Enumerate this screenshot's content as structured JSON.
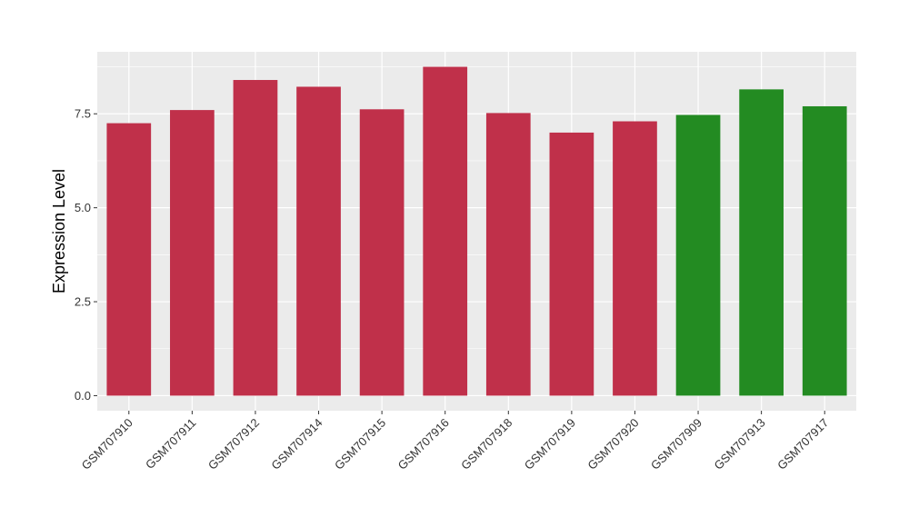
{
  "chart_data": {
    "type": "bar",
    "title": "",
    "xlabel": "",
    "ylabel": "Expression Level",
    "ylim": [
      -0.4,
      9.15
    ],
    "yticks": [
      0.0,
      2.5,
      5.0,
      7.5
    ],
    "ytick_labels": [
      "0.0",
      "2.5",
      "5.0",
      "7.5"
    ],
    "grid": true,
    "legend": "none",
    "panel_background": "#ebebeb",
    "grid_color": "#ffffff",
    "categories": [
      "GSM707910",
      "GSM707911",
      "GSM707912",
      "GSM707914",
      "GSM707915",
      "GSM707916",
      "GSM707918",
      "GSM707919",
      "GSM707920",
      "GSM707909",
      "GSM707913",
      "GSM707917"
    ],
    "values": [
      7.25,
      7.6,
      8.4,
      8.22,
      7.62,
      8.75,
      7.52,
      7.0,
      7.3,
      7.47,
      8.15,
      7.7
    ],
    "bar_colors": [
      "#c0304a",
      "#c0304a",
      "#c0304a",
      "#c0304a",
      "#c0304a",
      "#c0304a",
      "#c0304a",
      "#c0304a",
      "#c0304a",
      "#238b22",
      "#238b22",
      "#238b22"
    ]
  }
}
